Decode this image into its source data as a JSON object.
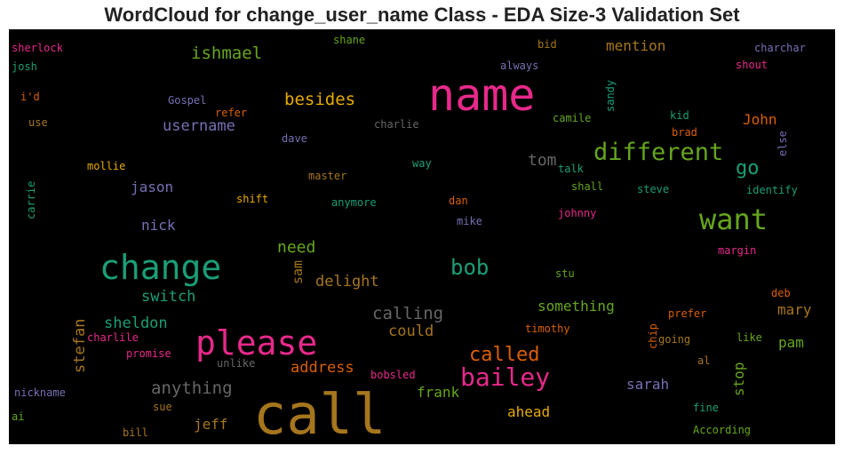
{
  "title": "WordCloud for change_user_name Class - EDA Size-3 Validation Set",
  "words": [
    {
      "text": "call",
      "color": "#a6761d"
    },
    {
      "text": "name",
      "color": "#e7298a"
    },
    {
      "text": "change",
      "color": "#1b9e77"
    },
    {
      "text": "please",
      "color": "#e7298a"
    },
    {
      "text": "want",
      "color": "#66a61e"
    },
    {
      "text": "different",
      "color": "#66a61e"
    },
    {
      "text": "bailey",
      "color": "#e7298a"
    },
    {
      "text": "bob",
      "color": "#1b9e77"
    },
    {
      "text": "called",
      "color": "#d95f02"
    },
    {
      "text": "calling",
      "color": "#666666"
    },
    {
      "text": "anything",
      "color": "#666666"
    },
    {
      "text": "go",
      "color": "#1b9e77"
    },
    {
      "text": "tom",
      "color": "#666666"
    },
    {
      "text": "besides",
      "color": "#e6ab02"
    },
    {
      "text": "ishmael",
      "color": "#66a61e"
    },
    {
      "text": "username",
      "color": "#7570b3"
    },
    {
      "text": "need",
      "color": "#66a61e"
    },
    {
      "text": "delight",
      "color": "#a6761d"
    },
    {
      "text": "switch",
      "color": "#1b9e77"
    },
    {
      "text": "sheldon",
      "color": "#1b9e77"
    },
    {
      "text": "address",
      "color": "#d95f02"
    },
    {
      "text": "could",
      "color": "#a6761d"
    },
    {
      "text": "something",
      "color": "#66a61e"
    },
    {
      "text": "mention",
      "color": "#a6761d"
    },
    {
      "text": "John",
      "color": "#d95f02"
    },
    {
      "text": "jason",
      "color": "#7570b3"
    },
    {
      "text": "nick",
      "color": "#7570b3"
    },
    {
      "text": "stefan",
      "color": "#a6761d"
    },
    {
      "text": "sarah",
      "color": "#7570b3"
    },
    {
      "text": "mary",
      "color": "#a6761d"
    },
    {
      "text": "pam",
      "color": "#66a61e"
    },
    {
      "text": "stop",
      "color": "#66a61e"
    },
    {
      "text": "frank",
      "color": "#66a61e"
    },
    {
      "text": "ahead",
      "color": "#e6ab02"
    },
    {
      "text": "jeff",
      "color": "#a6761d"
    },
    {
      "text": "sam",
      "color": "#a6761d"
    },
    {
      "text": "sherlock",
      "color": "#e7298a"
    },
    {
      "text": "josh",
      "color": "#1b9e77"
    },
    {
      "text": "i'd",
      "color": "#d95f02"
    },
    {
      "text": "use",
      "color": "#a6761d"
    },
    {
      "text": "carrie",
      "color": "#1b9e77"
    },
    {
      "text": "mollie",
      "color": "#e6ab02"
    },
    {
      "text": "shane",
      "color": "#66a61e"
    },
    {
      "text": "refer",
      "color": "#d95f02"
    },
    {
      "text": "Gospel",
      "color": "#7570b3"
    },
    {
      "text": "charlie",
      "color": "#666666"
    },
    {
      "text": "dave",
      "color": "#7570b3"
    },
    {
      "text": "master",
      "color": "#a6761d"
    },
    {
      "text": "shift",
      "color": "#e6ab02"
    },
    {
      "text": "anymore",
      "color": "#1b9e77"
    },
    {
      "text": "way",
      "color": "#1b9e77"
    },
    {
      "text": "dan",
      "color": "#d95f02"
    },
    {
      "text": "mike",
      "color": "#7570b3"
    },
    {
      "text": "bid",
      "color": "#a6761d"
    },
    {
      "text": "always",
      "color": "#7570b3"
    },
    {
      "text": "sandy",
      "color": "#1b9e77"
    },
    {
      "text": "camile",
      "color": "#66a61e"
    },
    {
      "text": "kid",
      "color": "#1b9e77"
    },
    {
      "text": "brad",
      "color": "#d95f02"
    },
    {
      "text": "charchar",
      "color": "#7570b3"
    },
    {
      "text": "shout",
      "color": "#e7298a"
    },
    {
      "text": "else",
      "color": "#7570b3"
    },
    {
      "text": "talk",
      "color": "#1b9e77"
    },
    {
      "text": "shall",
      "color": "#66a61e"
    },
    {
      "text": "steve",
      "color": "#1b9e77"
    },
    {
      "text": "identify",
      "color": "#1b9e77"
    },
    {
      "text": "johnny",
      "color": "#e7298a"
    },
    {
      "text": "margin",
      "color": "#e7298a"
    },
    {
      "text": "stu",
      "color": "#66a61e"
    },
    {
      "text": "deb",
      "color": "#d95f02"
    },
    {
      "text": "prefer",
      "color": "#d95f02"
    },
    {
      "text": "chip",
      "color": "#d95f02"
    },
    {
      "text": "timothy",
      "color": "#d95f02"
    },
    {
      "text": "going",
      "color": "#a6761d"
    },
    {
      "text": "like",
      "color": "#66a61e"
    },
    {
      "text": "al",
      "color": "#a6761d"
    },
    {
      "text": "charlile",
      "color": "#e7298a"
    },
    {
      "text": "promise",
      "color": "#e7298a"
    },
    {
      "text": "unlike",
      "color": "#666666"
    },
    {
      "text": "bobsled",
      "color": "#e7298a"
    },
    {
      "text": "nickname",
      "color": "#7570b3"
    },
    {
      "text": "ai",
      "color": "#66a61e"
    },
    {
      "text": "sue",
      "color": "#a6761d"
    },
    {
      "text": "bill",
      "color": "#a6761d"
    },
    {
      "text": "fine",
      "color": "#1b9e77"
    },
    {
      "text": "According",
      "color": "#66a61e"
    }
  ]
}
